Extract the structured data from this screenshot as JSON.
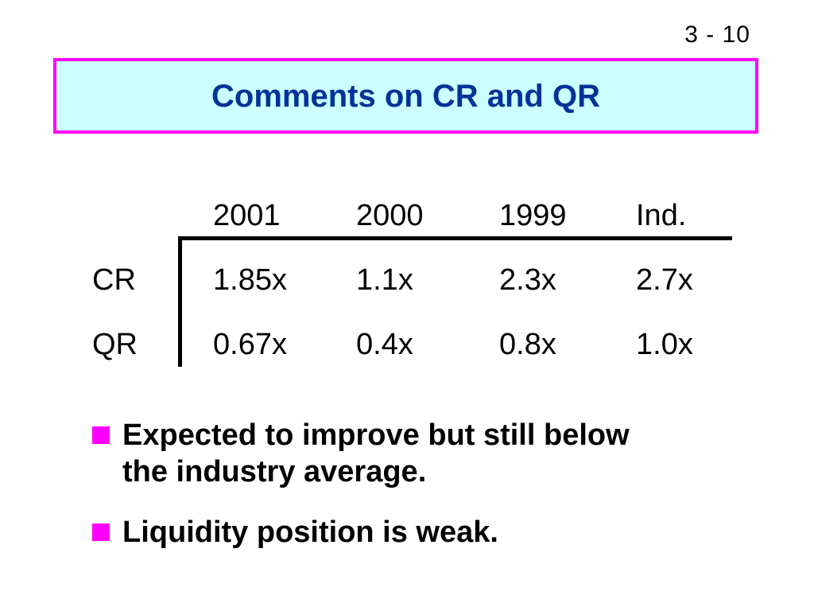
{
  "slide_number": "3 - 10",
  "title": "Comments on CR and QR",
  "table": {
    "columns": [
      "2001",
      "2000",
      "1999",
      "Ind."
    ],
    "rows": [
      {
        "label": "CR",
        "values": [
          "1.85x",
          "1.1x",
          "2.3x",
          "2.7x"
        ]
      },
      {
        "label": "QR",
        "values": [
          "0.67x",
          "0.4x",
          "0.8x",
          "1.0x"
        ]
      }
    ]
  },
  "bullets": [
    "Expected to improve but still below\nthe industry average.",
    "Liquidity position is weak."
  ],
  "colors": {
    "title_text": "#003399",
    "title_background": "#ccffff",
    "title_border": "#ff00ff",
    "bullet_marker": "#ff00ff"
  }
}
